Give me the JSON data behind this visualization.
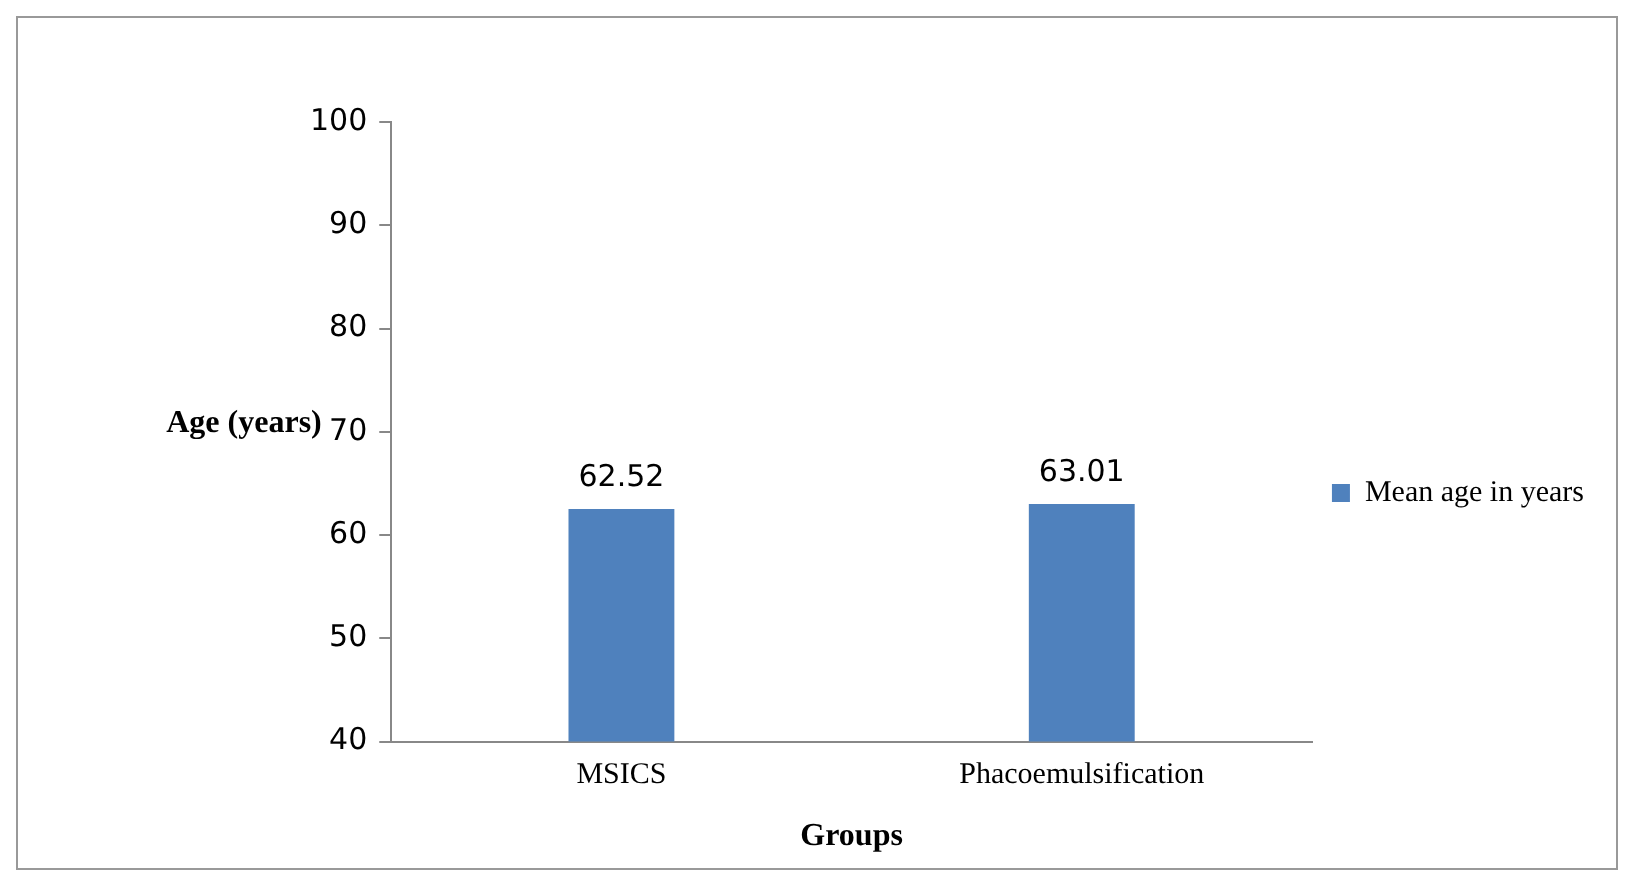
{
  "chart_data": {
    "type": "bar",
    "xlabel": "Groups",
    "ylabel": "Age (years)",
    "categories": [
      "MSICS",
      "Phacoemulsification"
    ],
    "series": [
      {
        "name": "Mean age in years",
        "color": "#4f81bd",
        "values": [
          62.52,
          63.01
        ]
      }
    ],
    "ylim": [
      40,
      100
    ],
    "yticks": [
      40,
      50,
      60,
      70,
      80,
      90,
      100
    ],
    "grid": false,
    "legend": "right",
    "data_labels": true
  }
}
